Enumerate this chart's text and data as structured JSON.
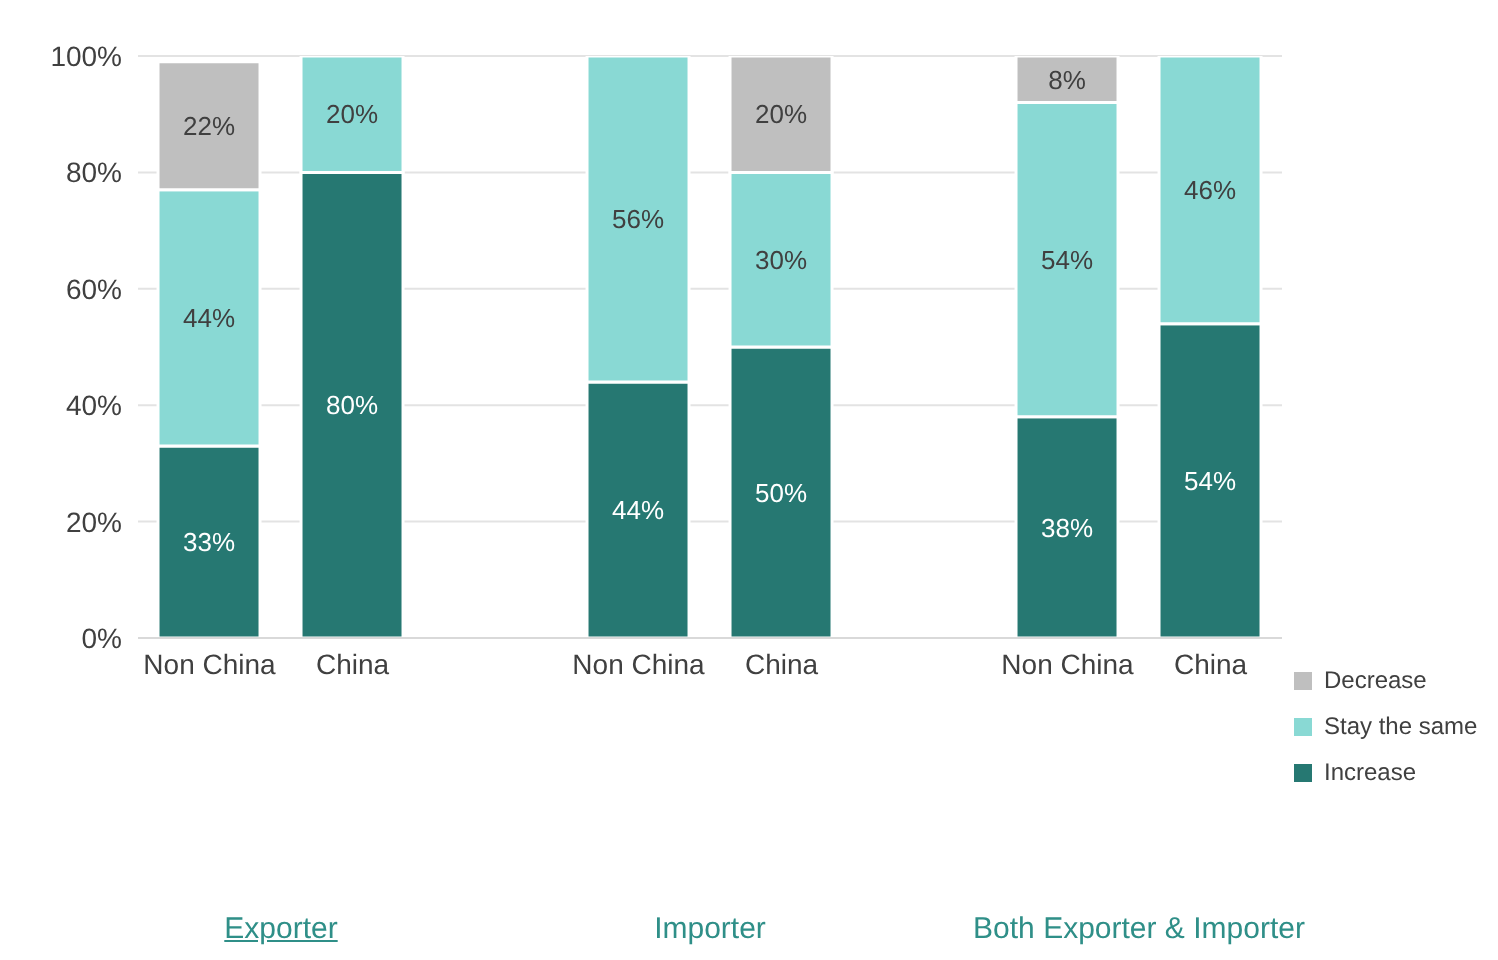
{
  "chart_data": {
    "type": "bar",
    "stacked": true,
    "categories": [
      "Non China",
      "China",
      null,
      "Non China",
      "China",
      null,
      "Non China",
      "China"
    ],
    "series": [
      {
        "name": "Increase",
        "color": "#267872",
        "values": [
          33,
          80,
          null,
          44,
          50,
          null,
          38,
          54
        ],
        "value_labels": [
          "33%",
          "80%",
          null,
          "44%",
          "50%",
          null,
          "38%",
          "54%"
        ]
      },
      {
        "name": "Stay the same",
        "color": "#89d9d4",
        "values": [
          44,
          20,
          null,
          56,
          30,
          null,
          54,
          46
        ],
        "value_labels": [
          "44%",
          "20%",
          null,
          "56%",
          "30%",
          null,
          "54%",
          "46%"
        ]
      },
      {
        "name": "Decrease",
        "color": "#bfbfbf",
        "values": [
          22,
          null,
          null,
          null,
          20,
          null,
          8,
          null
        ],
        "value_labels": [
          "22%",
          null,
          null,
          null,
          "20%",
          null,
          "8%",
          null
        ]
      }
    ],
    "ylim": [
      0,
      100
    ],
    "yticks": [
      {
        "value": 0,
        "label": "0%"
      },
      {
        "value": 20,
        "label": "20%"
      },
      {
        "value": 40,
        "label": "40%"
      },
      {
        "value": 60,
        "label": "60%"
      },
      {
        "value": 80,
        "label": "80%"
      },
      {
        "value": 100,
        "label": "100%"
      }
    ],
    "grid": "y",
    "legend": "bottom right",
    "annotations": [
      "Exporter",
      "Importer",
      "Both Exporter & Importer"
    ]
  }
}
